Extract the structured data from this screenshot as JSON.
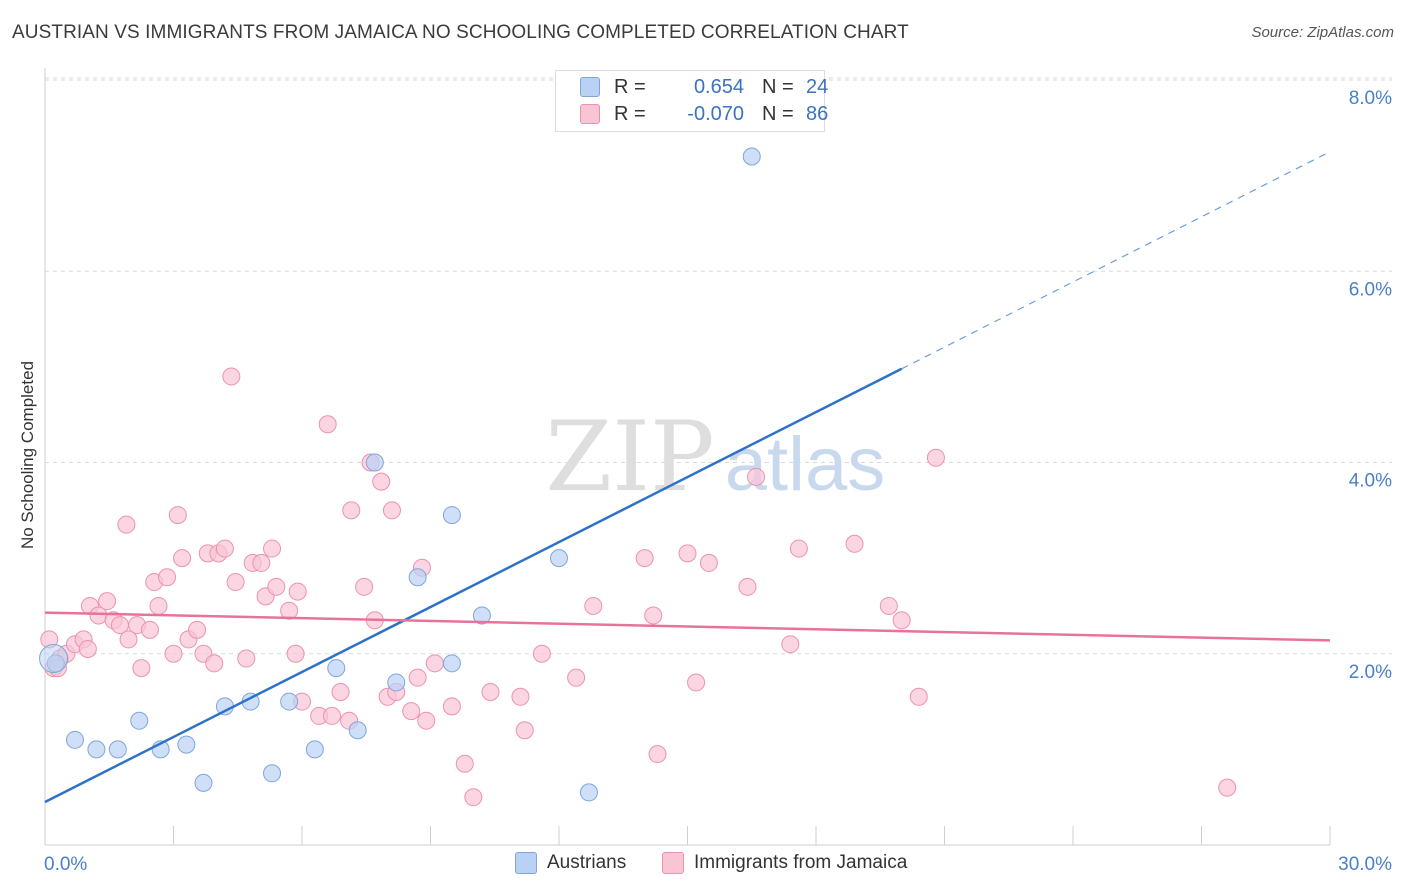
{
  "header": {
    "title": "AUSTRIAN VS IMMIGRANTS FROM JAMAICA NO SCHOOLING COMPLETED CORRELATION CHART",
    "source": "Source: ZipAtlas.com"
  },
  "watermark": {
    "zip": "ZIP",
    "atlas": "atlas"
  },
  "legend_top": {
    "rows": [
      {
        "r_label": "R =",
        "r_value": "0.654",
        "n_label": "N =",
        "n_value": "24"
      },
      {
        "r_label": "R =",
        "r_value": "-0.070",
        "n_label": "N =",
        "n_value": "86"
      }
    ]
  },
  "colors": {
    "austrians_fill": "#b9d2f3",
    "austrians_stroke": "#7ea6dc",
    "austrians_line": "#2d72c8",
    "jamaica_fill": "#f9c5d5",
    "jamaica_stroke": "#ec92ae",
    "jamaica_line": "#e8739a",
    "tick_label": "#4a7fc9",
    "grid": "#d9d9d9"
  },
  "chart_data": {
    "type": "scatter",
    "title": "AUSTRIAN VS IMMIGRANTS FROM JAMAICA NO SCHOOLING COMPLETED CORRELATION CHART",
    "xlabel": "",
    "ylabel": "No Schooling Completed",
    "xlim": [
      0,
      30
    ],
    "ylim": [
      0,
      8.3
    ],
    "x_tick_labels": [
      "0.0%",
      "30.0%"
    ],
    "y_ticks": [
      2,
      4,
      6,
      8
    ],
    "y_tick_labels": [
      "2.0%",
      "4.0%",
      "6.0%",
      "8.0%"
    ],
    "grid": true,
    "legend_position": "bottom",
    "series": [
      {
        "name": "Austrians",
        "r": 0.654,
        "n": 24,
        "points": [
          [
            0.25,
            1.9
          ],
          [
            0.7,
            1.1
          ],
          [
            1.2,
            1.0
          ],
          [
            1.7,
            1.0
          ],
          [
            2.2,
            1.3
          ],
          [
            2.7,
            1.0
          ],
          [
            3.3,
            1.05
          ],
          [
            3.7,
            0.65
          ],
          [
            4.2,
            1.45
          ],
          [
            4.8,
            1.5
          ],
          [
            5.3,
            0.75
          ],
          [
            5.7,
            1.5
          ],
          [
            6.3,
            1.0
          ],
          [
            6.8,
            1.85
          ],
          [
            7.3,
            1.2
          ],
          [
            7.7,
            4.0
          ],
          [
            8.2,
            1.7
          ],
          [
            8.7,
            2.8
          ],
          [
            9.5,
            1.9
          ],
          [
            9.5,
            3.45
          ],
          [
            10.2,
            2.4
          ],
          [
            12.0,
            3.0
          ],
          [
            12.7,
            0.55
          ],
          [
            16.5,
            7.2
          ]
        ],
        "trend": {
          "x0": 0,
          "y0": 0.45,
          "x1": 20.0,
          "y1": 4.98,
          "dash_x1": 30.0,
          "dash_y1": 7.25
        }
      },
      {
        "name": "Immigrants from Jamaica",
        "r": -0.07,
        "n": 86,
        "points": [
          [
            0.1,
            2.15
          ],
          [
            0.2,
            1.85
          ],
          [
            0.35,
            1.95
          ],
          [
            0.5,
            2.0
          ],
          [
            0.7,
            2.1
          ],
          [
            0.9,
            2.15
          ],
          [
            1.05,
            2.5
          ],
          [
            1.25,
            2.4
          ],
          [
            1.45,
            2.55
          ],
          [
            1.6,
            2.35
          ],
          [
            1.75,
            2.3
          ],
          [
            1.9,
            3.35
          ],
          [
            1.95,
            2.15
          ],
          [
            2.15,
            2.3
          ],
          [
            2.25,
            1.85
          ],
          [
            2.45,
            2.25
          ],
          [
            2.55,
            2.75
          ],
          [
            2.65,
            2.5
          ],
          [
            2.85,
            2.8
          ],
          [
            3.0,
            2.0
          ],
          [
            3.1,
            3.45
          ],
          [
            3.2,
            3.0
          ],
          [
            3.35,
            2.15
          ],
          [
            3.55,
            2.25
          ],
          [
            3.7,
            2.0
          ],
          [
            3.8,
            3.05
          ],
          [
            3.95,
            1.9
          ],
          [
            4.05,
            3.05
          ],
          [
            4.2,
            3.1
          ],
          [
            4.35,
            4.9
          ],
          [
            4.45,
            2.75
          ],
          [
            4.7,
            1.95
          ],
          [
            4.85,
            2.95
          ],
          [
            5.05,
            2.95
          ],
          [
            5.15,
            2.6
          ],
          [
            5.3,
            3.1
          ],
          [
            5.4,
            2.7
          ],
          [
            5.7,
            2.45
          ],
          [
            5.85,
            2.0
          ],
          [
            5.9,
            2.65
          ],
          [
            6.0,
            1.5
          ],
          [
            6.4,
            1.35
          ],
          [
            6.6,
            4.4
          ],
          [
            6.7,
            1.35
          ],
          [
            6.9,
            1.6
          ],
          [
            7.1,
            1.3
          ],
          [
            7.15,
            3.5
          ],
          [
            7.45,
            2.7
          ],
          [
            7.6,
            4.0
          ],
          [
            7.7,
            2.35
          ],
          [
            7.85,
            3.8
          ],
          [
            8.0,
            1.55
          ],
          [
            8.1,
            3.5
          ],
          [
            8.2,
            1.6
          ],
          [
            8.55,
            1.4
          ],
          [
            8.7,
            1.75
          ],
          [
            8.8,
            2.9
          ],
          [
            8.9,
            1.3
          ],
          [
            9.1,
            1.9
          ],
          [
            9.5,
            1.45
          ],
          [
            9.8,
            0.85
          ],
          [
            10.0,
            0.5
          ],
          [
            10.4,
            1.6
          ],
          [
            11.1,
            1.55
          ],
          [
            11.2,
            1.2
          ],
          [
            11.6,
            2.0
          ],
          [
            12.4,
            1.75
          ],
          [
            12.8,
            2.5
          ],
          [
            14.0,
            3.0
          ],
          [
            14.2,
            2.4
          ],
          [
            14.3,
            0.95
          ],
          [
            15.0,
            3.05
          ],
          [
            15.2,
            1.7
          ],
          [
            15.5,
            2.95
          ],
          [
            16.4,
            2.7
          ],
          [
            16.6,
            3.85
          ],
          [
            17.4,
            2.1
          ],
          [
            17.6,
            3.1
          ],
          [
            18.9,
            3.15
          ],
          [
            19.7,
            2.5
          ],
          [
            20.0,
            2.35
          ],
          [
            20.4,
            1.55
          ],
          [
            20.8,
            4.05
          ],
          [
            27.6,
            0.6
          ],
          [
            0.3,
            1.85
          ],
          [
            1.0,
            2.05
          ]
        ],
        "trend": {
          "x0": 0,
          "y0": 2.43,
          "x1": 30.0,
          "y1": 2.14
        }
      }
    ]
  },
  "bottom_legend": {
    "items": [
      {
        "label": "Austrians"
      },
      {
        "label": "Immigrants from Jamaica"
      }
    ]
  }
}
